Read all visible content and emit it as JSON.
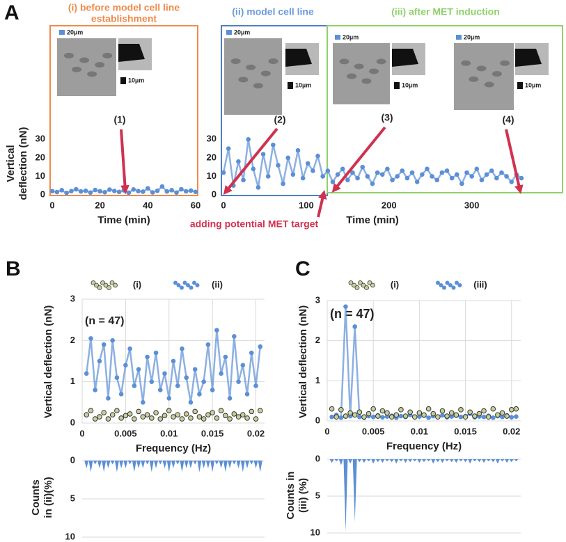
{
  "panels": [
    "A",
    "B",
    "C"
  ],
  "headings": [
    [
      "(i) before model cell line",
      "establishment"
    ],
    [
      "(ii) model cell line"
    ],
    [
      "(iii) after MET induction"
    ]
  ],
  "markers": [
    "(1)",
    "(2)",
    "(3)",
    "(4)"
  ],
  "scale_bars": [
    "20µm",
    "10µm"
  ],
  "note": "adding potential MET target",
  "chart_data": [
    {
      "type": "line",
      "xlabel": "Time (min)",
      "ylabel": [
        "Vertical",
        "deflection (nN)"
      ],
      "color": "#5b8fd6",
      "x": [
        0,
        2,
        4,
        6,
        8,
        10,
        12,
        14,
        16,
        18,
        20,
        22,
        24,
        26,
        28,
        30,
        32,
        34,
        36,
        38,
        40,
        42,
        44,
        46,
        48,
        50,
        52,
        54,
        56,
        58,
        60
      ],
      "values": [
        2,
        1.5,
        2.5,
        1,
        2,
        3,
        1.8,
        2.2,
        1.2,
        2.6,
        1.9,
        1.4,
        2.8,
        2.1,
        1.6,
        2.4,
        1.1,
        2.9,
        2,
        1.7,
        3.5,
        1.3,
        2.2,
        4.5,
        1.8,
        2.5,
        1.2,
        3,
        1.9,
        2.3,
        1.6
      ],
      "xlim": [
        0,
        60
      ],
      "xticks": [
        0,
        20,
        40,
        60
      ],
      "ylim": [
        0,
        35
      ],
      "yticks": [
        0,
        10,
        20,
        30
      ],
      "grid": false
    },
    {
      "type": "line",
      "xlabel": "Time (min)",
      "color": "#5b8fd6",
      "x": [
        0,
        6,
        12,
        18,
        24,
        30,
        36,
        42,
        48,
        54,
        60,
        66,
        72,
        78,
        84,
        90,
        96,
        102,
        108,
        114,
        120,
        126,
        132,
        138,
        144,
        150,
        156,
        162,
        168,
        174,
        180,
        186,
        192,
        198,
        204,
        210,
        216,
        222,
        228,
        234,
        240,
        246,
        252,
        258,
        264,
        270,
        276,
        282,
        288,
        294,
        300,
        306,
        312,
        318,
        324,
        330,
        336,
        342,
        348,
        354,
        360
      ],
      "values": [
        12,
        25,
        5,
        18,
        8,
        30,
        14,
        4,
        22,
        10,
        27,
        16,
        6,
        20,
        11,
        24,
        9,
        17,
        13,
        21,
        10,
        13,
        7,
        11,
        14,
        8,
        12,
        9,
        15,
        10,
        6,
        12,
        11,
        14,
        8,
        10,
        13,
        9,
        12,
        7,
        11,
        14,
        10,
        8,
        12,
        13,
        9,
        11,
        6,
        12,
        10,
        14,
        8,
        11,
        13,
        9,
        12,
        10,
        7,
        11,
        9
      ],
      "xlim": [
        0,
        360
      ],
      "xticks": [
        0,
        100,
        200,
        300
      ],
      "ylim": [
        0,
        35
      ],
      "yticks": [
        0,
        10,
        20,
        30
      ],
      "grid": false
    },
    {
      "type": "line",
      "xlabel": "Frequency (Hz)",
      "ylabel": [
        "Vertical deflection (nN)"
      ],
      "annotation": "(n = 47)",
      "x": [
        0.0005,
        0.001,
        0.0015,
        0.002,
        0.0025,
        0.003,
        0.0035,
        0.004,
        0.0045,
        0.005,
        0.0055,
        0.006,
        0.0065,
        0.007,
        0.0075,
        0.008,
        0.0085,
        0.009,
        0.0095,
        0.01,
        0.0105,
        0.011,
        0.0115,
        0.012,
        0.0125,
        0.013,
        0.0135,
        0.014,
        0.0145,
        0.015,
        0.0155,
        0.016,
        0.0165,
        0.017,
        0.0175,
        0.018,
        0.0185,
        0.019,
        0.0195,
        0.02,
        0.0205
      ],
      "series": [
        {
          "name": "(i)",
          "color": "#c9cf9c",
          "line": false,
          "values": [
            0.2,
            0.3,
            0.1,
            0.15,
            0.25,
            0.1,
            0.2,
            0.3,
            0.12,
            0.18,
            0.22,
            0.1,
            0.28,
            0.15,
            0.2,
            0.12,
            0.25,
            0.1,
            0.18,
            0.3,
            0.15,
            0.2,
            0.1,
            0.22,
            0.12,
            0.28,
            0.15,
            0.1,
            0.2,
            0.25,
            0.12,
            0.3,
            0.18,
            0.1,
            0.22,
            0.15,
            0.2,
            0.12,
            0.28,
            0.1,
            0.3
          ]
        },
        {
          "name": "(ii)",
          "color": "#5b8fd6",
          "line": true,
          "values": [
            1.2,
            2.05,
            0.8,
            1.5,
            1.9,
            0.6,
            2.0,
            1.1,
            0.7,
            1.4,
            1.8,
            0.9,
            1.3,
            0.5,
            1.6,
            1.0,
            1.7,
            0.8,
            1.2,
            0.6,
            1.5,
            0.9,
            1.8,
            1.1,
            0.5,
            1.3,
            0.7,
            1.0,
            1.9,
            0.8,
            2.25,
            1.2,
            1.6,
            0.6,
            2.1,
            1.0,
            1.4,
            0.7,
            1.7,
            0.9,
            1.85
          ]
        }
      ],
      "xlim": [
        0,
        0.021
      ],
      "xticks": [
        0,
        0.005,
        0.01,
        0.015,
        0.02
      ],
      "ylim": [
        0,
        3
      ],
      "yticks": [
        0,
        1,
        2,
        3
      ],
      "grid": true
    },
    {
      "type": "bar",
      "ylabel": [
        "Counts",
        "in (ii)(%)"
      ],
      "color": "#5b8fd6",
      "x": [
        0.0005,
        0.001,
        0.0015,
        0.002,
        0.0025,
        0.003,
        0.0035,
        0.004,
        0.0045,
        0.005,
        0.0055,
        0.006,
        0.0065,
        0.007,
        0.0075,
        0.008,
        0.0085,
        0.009,
        0.0095,
        0.01,
        0.0105,
        0.011,
        0.0115,
        0.012,
        0.0125,
        0.013,
        0.0135,
        0.014,
        0.0145,
        0.015,
        0.0155,
        0.016,
        0.0165,
        0.017,
        0.0175,
        0.018,
        0.0185,
        0.019,
        0.0195,
        0.02,
        0.0205
      ],
      "values": [
        1,
        1.5,
        0.5,
        1,
        1.5,
        1,
        0.5,
        1.5,
        1,
        1,
        0.5,
        1.5,
        1,
        1,
        0.5,
        1.5,
        1,
        0.5,
        1,
        1.5,
        1,
        0.5,
        1.5,
        1,
        1,
        0.5,
        1.5,
        1,
        1,
        1.5,
        0.5,
        1,
        1.5,
        1,
        0.5,
        1,
        1.5,
        1,
        0.5,
        1,
        1.5
      ],
      "xlim": [
        0,
        0.021
      ],
      "ylim": [
        10,
        0
      ],
      "yticks": [
        0,
        5,
        10
      ],
      "grid": true
    },
    {
      "type": "line",
      "xlabel": "Frequency (Hz)",
      "ylabel": [
        "Vertical deflection (nN)"
      ],
      "annotation": "(n = 47)",
      "x": [
        0.0005,
        0.001,
        0.0015,
        0.002,
        0.0025,
        0.003,
        0.0035,
        0.004,
        0.0045,
        0.005,
        0.0055,
        0.006,
        0.0065,
        0.007,
        0.0075,
        0.008,
        0.0085,
        0.009,
        0.0095,
        0.01,
        0.0105,
        0.011,
        0.0115,
        0.012,
        0.0125,
        0.013,
        0.0135,
        0.014,
        0.0145,
        0.015,
        0.0155,
        0.016,
        0.0165,
        0.017,
        0.0175,
        0.018,
        0.0185,
        0.019,
        0.0195,
        0.02,
        0.0205
      ],
      "series": [
        {
          "name": "(i)",
          "color": "#c9cf9c",
          "line": false,
          "values": [
            0.3,
            0.1,
            0.28,
            0.12,
            0.2,
            0.15,
            0.22,
            0.1,
            0.18,
            0.3,
            0.12,
            0.25,
            0.2,
            0.1,
            0.15,
            0.28,
            0.12,
            0.22,
            0.1,
            0.2,
            0.15,
            0.3,
            0.18,
            0.1,
            0.25,
            0.12,
            0.2,
            0.15,
            0.28,
            0.1,
            0.22,
            0.12,
            0.18,
            0.25,
            0.1,
            0.3,
            0.15,
            0.2,
            0.12,
            0.28,
            0.3
          ]
        },
        {
          "name": "(iii)",
          "color": "#5b8fd6",
          "line": true,
          "values": [
            0.1,
            0.15,
            0.08,
            2.85,
            0.12,
            2.35,
            0.1,
            0.08,
            0.12,
            0.1,
            0.14,
            0.09,
            0.11,
            0.13,
            0.08,
            0.12,
            0.1,
            0.15,
            0.09,
            0.11,
            0.13,
            0.08,
            0.12,
            0.1,
            0.14,
            0.09,
            0.11,
            0.13,
            0.1,
            0.12,
            0.18,
            0.09,
            0.11,
            0.1,
            0.13,
            0.08,
            0.12,
            0.1,
            0.14,
            0.09,
            0.11
          ]
        }
      ],
      "xlim": [
        0,
        0.021
      ],
      "xticks": [
        0,
        0.005,
        0.01,
        0.015,
        0.02
      ],
      "ylim": [
        0,
        3
      ],
      "yticks": [
        0,
        1,
        2,
        3
      ],
      "grid": true
    },
    {
      "type": "bar",
      "ylabel": [
        "Counts in",
        "(iii) (%)"
      ],
      "color": "#5b8fd6",
      "x": [
        0.0005,
        0.001,
        0.0015,
        0.002,
        0.0025,
        0.003,
        0.0035,
        0.004,
        0.0045,
        0.005,
        0.0055,
        0.006,
        0.0065,
        0.007,
        0.0075,
        0.008,
        0.0085,
        0.009,
        0.0095,
        0.01,
        0.0105,
        0.011,
        0.0115,
        0.012,
        0.0125,
        0.013,
        0.0135,
        0.014,
        0.0145,
        0.015,
        0.0155,
        0.016,
        0.0165,
        0.017,
        0.0175,
        0.018,
        0.0185,
        0.019,
        0.0195,
        0.02,
        0.0205
      ],
      "values": [
        0.5,
        0.3,
        0.8,
        9.8,
        0.6,
        8.5,
        0.4,
        0.5,
        0.3,
        0.6,
        0.4,
        0.5,
        0.3,
        0.4,
        0.6,
        0.3,
        0.5,
        0.4,
        0.3,
        0.5,
        0.4,
        0.3,
        0.6,
        0.4,
        0.5,
        0.3,
        0.4,
        0.5,
        0.3,
        0.4,
        0.6,
        0.3,
        0.4,
        0.5,
        0.3,
        0.4,
        0.6,
        0.3,
        0.5,
        0.4,
        0.3
      ],
      "xlim": [
        0,
        0.021
      ],
      "ylim": [
        10,
        0
      ],
      "yticks": [
        0,
        5,
        10
      ],
      "grid": true
    }
  ]
}
